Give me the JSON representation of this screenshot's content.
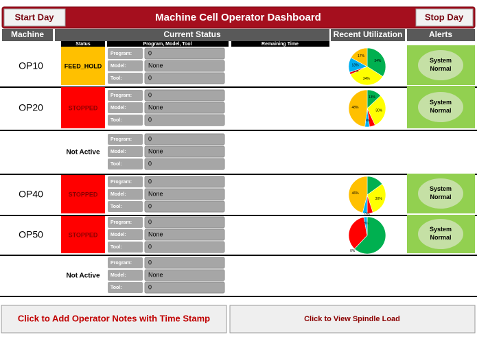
{
  "header": {
    "start_button": "Start Day",
    "title": "Machine Cell Operator Dashboard",
    "stop_button": "Stop Day"
  },
  "columns": {
    "machine": "Machine",
    "current_status": "Current Status",
    "recent_utilization": "Recent Utilization",
    "alerts": "Alerts"
  },
  "subcolumns": {
    "status": "Status",
    "program_model_tool": "Program, Model, Tool",
    "remaining_time": "Remaining Time"
  },
  "field_labels": [
    "Program:",
    "Model:",
    "Tool:"
  ],
  "utilization_colors": [
    "#00b050",
    "#ffff00",
    "#ff0000",
    "#00b0f0",
    "#ffc000"
  ],
  "rows": [
    {
      "machine": "OP10",
      "status": "FEED_HOLD",
      "status_color": "#ffc000",
      "status_text_color": "#000000",
      "fields": [
        "0",
        "None",
        "0"
      ],
      "utilization": {
        "values": [
          34,
          34,
          2,
          13,
          17
        ],
        "value_labels": [
          "34%",
          "34%",
          "2%",
          "13%",
          "17%"
        ]
      },
      "alert": "System Normal"
    },
    {
      "machine": "OP20",
      "status": "STOPPED",
      "status_color": "#ff0000",
      "status_text_color": "#8b0000",
      "fields": [
        "0",
        "None",
        "0"
      ],
      "utilization": {
        "values": [
          13,
          30,
          5,
          4,
          48
        ],
        "value_labels": [
          "13%",
          "30%",
          null,
          "4%",
          "48%"
        ]
      },
      "alert": "System Normal"
    },
    {
      "status": "Not Active",
      "fields": [
        "0",
        "None",
        "0"
      ]
    },
    {
      "machine": "OP40",
      "status": "STOPPED",
      "status_color": "#ff0000",
      "status_text_color": "#8b0000",
      "fields": [
        "0",
        "None",
        "0"
      ],
      "utilization": {
        "values": [
          15,
          30,
          5,
          4,
          46
        ],
        "value_labels": [
          null,
          "30%",
          null,
          null,
          "46%"
        ]
      },
      "alert": "System Normal"
    },
    {
      "machine": "OP50",
      "status": "STOPPED",
      "status_color": "#ff0000",
      "status_text_color": "#8b0000",
      "fields": [
        "0",
        "None",
        "0"
      ],
      "utilization": {
        "values": [
          62,
          0,
          35,
          3,
          0
        ],
        "value_labels": [
          null,
          "0%",
          null,
          "3%",
          "0%"
        ]
      },
      "alert": "System Normal"
    },
    {
      "status": "Not Active",
      "fields": [
        "0",
        "None",
        "0"
      ]
    }
  ],
  "footer": {
    "notes_button": "Click to Add Operator Notes with Time Stamp",
    "spindle_button": "Click to View Spindle Load"
  }
}
